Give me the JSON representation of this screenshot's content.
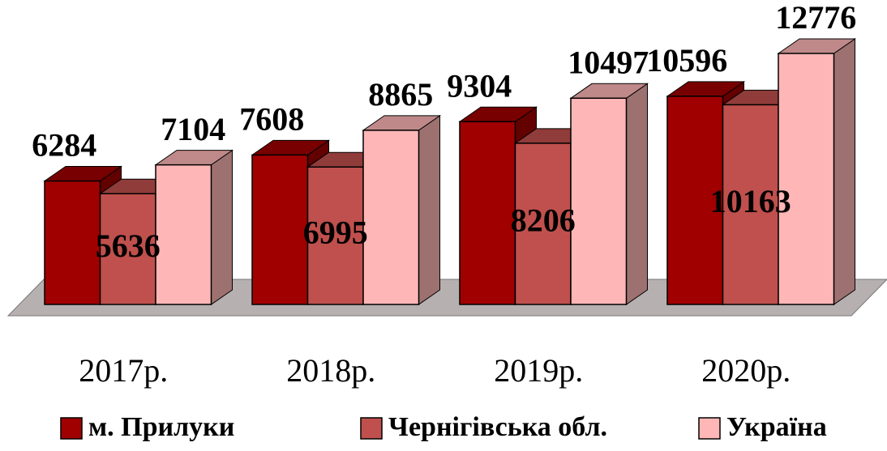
{
  "chart_data": {
    "type": "bar3d",
    "categories": [
      "2017р.",
      "2018р.",
      "2019р.",
      "2020р."
    ],
    "series": [
      {
        "name": "м. Прилуки",
        "color": "#a00000",
        "values": [
          6284,
          7608,
          9304,
          10596
        ]
      },
      {
        "name": "Чернігівська обл.",
        "color": "#c0504d",
        "values": [
          5636,
          6995,
          8206,
          10163
        ]
      },
      {
        "name": "Україна",
        "color": "#ffb6b6",
        "values": [
          7104,
          8865,
          10497,
          12776
        ]
      }
    ]
  }
}
